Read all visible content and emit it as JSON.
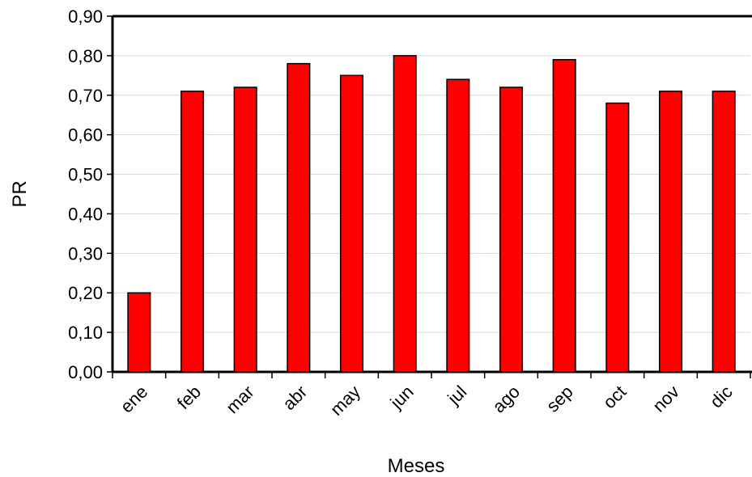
{
  "chart_data": {
    "type": "bar",
    "title": "",
    "xlabel": "Meses",
    "ylabel": "PR",
    "categories": [
      "ene",
      "feb",
      "mar",
      "abr",
      "may",
      "jun",
      "jul",
      "ago",
      "sep",
      "oct",
      "nov",
      "dic"
    ],
    "values": [
      0.2,
      0.71,
      0.72,
      0.78,
      0.75,
      0.8,
      0.74,
      0.72,
      0.79,
      0.68,
      0.71,
      0.71
    ],
    "ylim": [
      0,
      0.9
    ],
    "yticks": [
      "0,00",
      "0,10",
      "0,20",
      "0,30",
      "0,40",
      "0,50",
      "0,60",
      "0,70",
      "0,80",
      "0,90"
    ],
    "grid": true,
    "legend": "none",
    "colors": {
      "bar": "#ff0000",
      "bar_stroke": "#000000",
      "grid": "#d9d9d9",
      "axis": "#000000"
    }
  }
}
